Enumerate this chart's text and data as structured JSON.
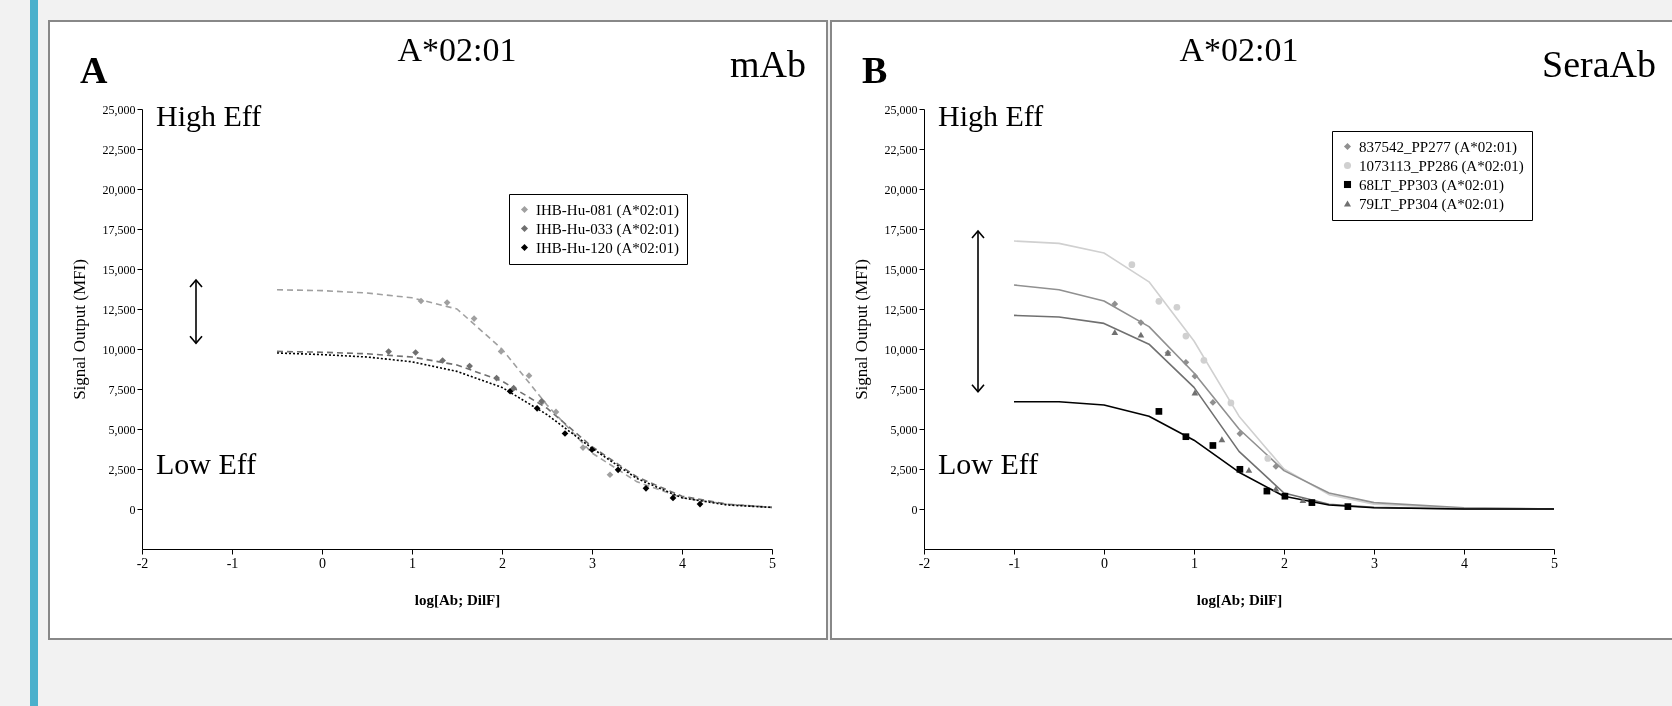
{
  "chart_data": [
    {
      "type": "scatter",
      "title": "A*02:01",
      "xlabel": "log[Ab; DilF]",
      "ylabel": "Signal Output (MFI)",
      "annotations": [
        "A",
        "mAb",
        "High Eff",
        "Low Eff"
      ],
      "legend": "top right",
      "xlim": [
        -2,
        5
      ],
      "xticks": [
        -2,
        -1,
        0,
        1,
        2,
        3,
        4,
        5
      ],
      "ylim": [
        -2500,
        25000
      ],
      "yticks": [
        0,
        {
          "value": 2500,
          "label": "2,500"
        },
        {
          "value": 5000,
          "label": "5,000"
        },
        {
          "value": 7500,
          "label": "7,500"
        },
        {
          "value": 10000,
          "label": "10,000"
        },
        {
          "value": 12500,
          "label": "12,500"
        },
        {
          "value": 15000,
          "label": "15,000"
        },
        {
          "value": 17500,
          "label": "17,500"
        },
        {
          "value": 20000,
          "label": "20,000"
        },
        {
          "value": 22500,
          "label": "22,500"
        },
        {
          "value": 25000,
          "label": "25,000"
        }
      ],
      "series": [
        {
          "type": "line",
          "line_style": "dashed",
          "color": "#a0a0a0",
          "x": [
            -0.5,
            0,
            0.5,
            1,
            1.5,
            2,
            2.5,
            3,
            3.5,
            4,
            4.5,
            5
          ],
          "values": [
            13700,
            13650,
            13500,
            13200,
            12500,
            10000,
            6500,
            3500,
            1700,
            700,
            300,
            100
          ]
        },
        {
          "type": "line",
          "line_style": "dashed",
          "color": "#707070",
          "x": [
            -0.5,
            0,
            0.5,
            1,
            1.5,
            2,
            2.5,
            3,
            3.5,
            4,
            4.5,
            5
          ],
          "values": [
            9850,
            9800,
            9700,
            9500,
            9000,
            8000,
            6300,
            3900,
            2000,
            800,
            300,
            100
          ]
        },
        {
          "type": "line",
          "line_style": "dotted",
          "color": "#000000",
          "x": [
            -0.5,
            0,
            0.5,
            1,
            1.5,
            2,
            2.5,
            3,
            3.5,
            4,
            4.5,
            5
          ],
          "values": [
            9750,
            9650,
            9500,
            9200,
            8600,
            7600,
            5900,
            3800,
            1900,
            700,
            250,
            100
          ]
        },
        {
          "name": "IHB-Hu-081 (A*02:01)",
          "marker": "diamond",
          "color": "#a0a0a0",
          "x": [
            1.1,
            1.39,
            1.69,
            1.99,
            2.3,
            2.45,
            2.6,
            2.9,
            3.2
          ],
          "values": [
            13000,
            12900,
            11900,
            9850,
            8330,
            6700,
            6070,
            3840,
            2140
          ]
        },
        {
          "name": "IHB-Hu-033 (A*02:01)",
          "marker": "diamond",
          "color": "#707070",
          "x": [
            0.74,
            1.04,
            1.34,
            1.64,
            1.94,
            2.13,
            2.44
          ],
          "values": [
            9840,
            9780,
            9280,
            8930,
            8180,
            7550,
            6730
          ]
        },
        {
          "name": "IHB-Hu-120 (A*02:01)",
          "marker": "diamond",
          "color": "#000000",
          "x": [
            2.09,
            2.39,
            2.7,
            3.0,
            3.29,
            3.6,
            3.9,
            4.2
          ],
          "values": [
            7360,
            6290,
            4720,
            3710,
            2450,
            1290,
            690,
            310
          ]
        }
      ]
    },
    {
      "type": "scatter",
      "title": "A*02:01",
      "xlabel": "log[Ab; DilF]",
      "ylabel": "Signal Output (MFI)",
      "annotations": [
        "B",
        "SeraAb",
        "High Eff",
        "Low Eff"
      ],
      "legend": "top right",
      "xlim": [
        -2,
        5
      ],
      "xticks": [
        -2,
        -1,
        0,
        1,
        2,
        3,
        4,
        5
      ],
      "ylim": [
        -2500,
        25000
      ],
      "yticks": [
        0,
        {
          "value": 2500,
          "label": "2,500"
        },
        {
          "value": 5000,
          "label": "5,000"
        },
        {
          "value": 7500,
          "label": "7,500"
        },
        {
          "value": 10000,
          "label": "10,000"
        },
        {
          "value": 12500,
          "label": "12,500"
        },
        {
          "value": 15000,
          "label": "15,000"
        },
        {
          "value": 17500,
          "label": "17,500"
        },
        {
          "value": 20000,
          "label": "20,000"
        },
        {
          "value": 22500,
          "label": "22,500"
        },
        {
          "value": 25000,
          "label": "25,000"
        }
      ],
      "series": [
        {
          "type": "line",
          "line_style": "solid",
          "color": "#d0d0d0",
          "x": [
            -1,
            -0.5,
            0,
            0.5,
            1,
            1.5,
            2,
            2.5,
            3,
            4,
            5
          ],
          "values": [
            16750,
            16600,
            16000,
            14200,
            10500,
            5800,
            2500,
            900,
            300,
            50,
            0
          ]
        },
        {
          "type": "line",
          "line_style": "solid",
          "color": "#909090",
          "x": [
            -1,
            -0.5,
            0,
            0.5,
            1,
            1.5,
            2,
            2.5,
            3,
            4,
            5
          ],
          "values": [
            14000,
            13700,
            13000,
            11400,
            8500,
            5000,
            2400,
            1000,
            400,
            80,
            0
          ]
        },
        {
          "type": "line",
          "line_style": "solid",
          "color": "#707070",
          "x": [
            -1,
            -0.5,
            0,
            0.5,
            1,
            1.5,
            2,
            2.5,
            3,
            4,
            5
          ],
          "values": [
            12100,
            12000,
            11600,
            10300,
            7600,
            3600,
            1000,
            300,
            100,
            0,
            0
          ]
        },
        {
          "type": "line",
          "line_style": "solid",
          "color": "#000000",
          "x": [
            -1,
            -0.5,
            0,
            0.5,
            1,
            1.5,
            2,
            2.5,
            3,
            4,
            5
          ],
          "values": [
            6700,
            6700,
            6500,
            5800,
            4300,
            2300,
            800,
            250,
            80,
            0,
            0
          ]
        },
        {
          "name": "837542_PP277 (A*02:01)",
          "marker": "diamond",
          "color": "#909090",
          "x": [
            0.12,
            0.41,
            0.71,
            0.91,
            1.01,
            1.21,
            1.51,
            1.91
          ],
          "values": [
            12820,
            11650,
            9760,
            9170,
            8300,
            6660,
            4710,
            2660
          ]
        },
        {
          "name": "1073113_PP286 (A*02:01)",
          "marker": "circle",
          "color": "#d0d0d0",
          "x": [
            0.31,
            0.61,
            0.81,
            0.91,
            1.11,
            1.41,
            1.82
          ],
          "values": [
            15270,
            12980,
            12610,
            10810,
            9290,
            6630,
            3160
          ]
        },
        {
          "name": "68LT_PP303 (A*02:01)",
          "marker": "square",
          "color": "#000000",
          "x": [
            0.61,
            0.91,
            1.21,
            1.51,
            1.81,
            2.01,
            2.31,
            2.71
          ],
          "values": [
            6100,
            4520,
            3970,
            2480,
            1120,
            800,
            400,
            150
          ]
        },
        {
          "name": "79LT_PP304 (A*02:01)",
          "marker": "triangle",
          "color": "#707070",
          "x": [
            0.12,
            0.41,
            0.71,
            1.01,
            1.31,
            1.61,
            1.91,
            2.21
          ],
          "values": [
            11050,
            10900,
            9760,
            7280,
            4360,
            2440,
            1270,
            560
          ]
        }
      ]
    }
  ]
}
